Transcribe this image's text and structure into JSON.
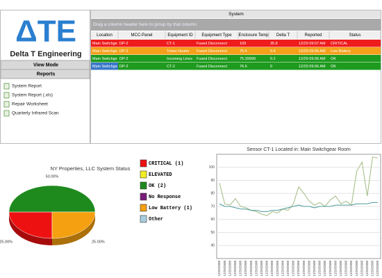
{
  "header": {
    "logo": "ΔTE",
    "brand": "Delta T Engineering"
  },
  "sidebar": {
    "view_mode": "View Mode",
    "reports": "Reports",
    "links": [
      "System Report",
      "System Report (.xls)",
      "Repair Worksheet",
      "Quarterly Infrared Scan"
    ]
  },
  "grid": {
    "title": "System",
    "group_hint": "Drag a column header here to group by that column.",
    "columns": [
      "Location",
      "MCC-Panel",
      "Equipment ID",
      "Equipment Type",
      "Enclosure Temp",
      "Delta T",
      "Reported",
      "Status"
    ],
    "rows": [
      [
        "Main Switchge",
        "DP-2",
        "CT-1",
        "Fused Disconnect",
        "109",
        "35.8",
        "12/29 09:07 AM",
        "CRITICAL"
      ],
      [
        "Main Switchge",
        "DP-2",
        "Tower Heater",
        "Fused Disconnect",
        "75.4",
        "0.4",
        "12/29 09:06 AM",
        "Low Battery"
      ],
      [
        "Main Switchge",
        "DP-2",
        "Incoming Lines",
        "Fused Disconnect",
        "75.39999",
        "0.2",
        "12/29 09:06 AM",
        "OK"
      ],
      [
        "Main Switchge",
        "DP-2",
        "CT-2",
        "Fused Disconnect",
        "76.6",
        "0",
        "12/29 09:06 AM",
        "OK"
      ]
    ],
    "row_colors": [
      "#ee1c1c",
      "#f5a01a",
      "#1e9a1e",
      "#1e9a1e"
    ]
  },
  "pie_chart": {
    "type": "pie",
    "title": "NY Properties, LLC System Status",
    "categories": [
      "CRITICAL (1)",
      "ELEVATED",
      "OK (2)",
      "No Response",
      "Low Battery (1)",
      "Other"
    ],
    "values": [
      25,
      0,
      50,
      0,
      25,
      0
    ],
    "value_labels": [
      "25.00%",
      null,
      "50.00%",
      null,
      "25.00%",
      null
    ],
    "colors": [
      "#ee1111",
      "#f2ee22",
      "#1e8a1e",
      "#7a1a7a",
      "#f5a010",
      "#a8cce0"
    ]
  },
  "line_chart": {
    "type": "line",
    "title": "Sensor CT-1 Located in: Main Switchgear Room",
    "x": [
      "12/29/2008",
      "12/29/2008",
      "12/29/2008",
      "12/29/2008",
      "12/29/2008",
      "12/29/2008",
      "12/29/2008",
      "12/29/2008",
      "12/29/2008",
      "12/29/2008",
      "12/29/2008",
      "12/29/2008",
      "12/29/2008",
      "12/29/2008",
      "12/29/2008",
      "12/29/2008",
      "12/29/2008",
      "12/29/2008",
      "12/29/2008",
      "12/29/2008",
      "12/29/2008",
      "12/29/2008",
      "12/29/2008",
      "12/29/2008",
      "12/29/2008",
      "12/29/2008",
      "12/29/2008",
      "12/29/2008",
      "12/29/2008",
      "12/29/2008",
      "12/29/2008"
    ],
    "series": [
      {
        "color": "#a9bf8c",
        "values": [
          88,
          72,
          71,
          76,
          70,
          69,
          67,
          66,
          64,
          63,
          66,
          65,
          68,
          67,
          72,
          85,
          80,
          74,
          71,
          73,
          70,
          75,
          78,
          72,
          74,
          71,
          97,
          104,
          78,
          108,
          107
        ]
      },
      {
        "color": "#4f9a9a",
        "values": [
          72,
          70,
          70,
          69,
          68,
          68,
          67,
          67,
          66,
          66,
          67,
          67,
          68,
          69,
          70,
          71,
          70,
          70,
          69,
          70,
          70,
          70,
          71,
          71,
          71,
          71,
          72,
          72,
          72,
          73,
          73
        ]
      }
    ],
    "ylim": [
      30,
      110
    ],
    "yticks": [
      40,
      50,
      60,
      70,
      80,
      90,
      100
    ],
    "grid": true
  }
}
